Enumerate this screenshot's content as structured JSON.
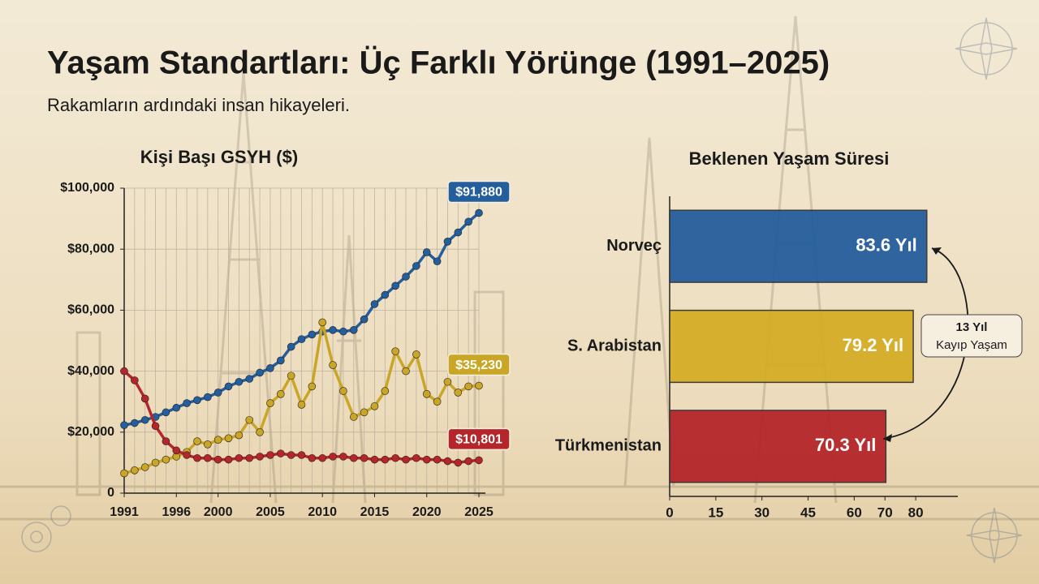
{
  "title": "Yaşam Standartları: Üç Farklı Yörünge (1991–2025)",
  "subtitle": "Rakamların ardındaki insan hikayeleri.",
  "chart_data": [
    {
      "type": "line",
      "title": "Kişi Başı GSYH ($)",
      "x": [
        1991,
        1992,
        1993,
        1994,
        1995,
        1996,
        1997,
        1998,
        1999,
        2000,
        2001,
        2002,
        2003,
        2004,
        2005,
        2006,
        2007,
        2008,
        2009,
        2010,
        2011,
        2012,
        2013,
        2014,
        2015,
        2016,
        2017,
        2018,
        2019,
        2020,
        2021,
        2022,
        2023,
        2024,
        2025
      ],
      "xlim": [
        1991,
        2025
      ],
      "xticks": [
        1991,
        1996,
        2000,
        2005,
        2010,
        2015,
        2020,
        2025
      ],
      "ylim": [
        0,
        100000
      ],
      "yticks": [
        0,
        {
          "value": 20000,
          "label": "$20,000"
        },
        {
          "value": 40000,
          "label": "$40,000"
        },
        {
          "value": 60000,
          "label": "$60,000"
        },
        {
          "value": 80000,
          "label": "$80,000"
        },
        {
          "value": 100000,
          "label": "$100,000"
        }
      ],
      "grid": true,
      "series": [
        {
          "color": "#255e9c",
          "values": [
            22300,
            23000,
            24000,
            25000,
            26500,
            28000,
            29500,
            30500,
            31500,
            33000,
            35000,
            36500,
            37500,
            39500,
            41000,
            43500,
            48000,
            50500,
            52000,
            53000,
            53500,
            53000,
            53500,
            57000,
            62000,
            65000,
            68000,
            71000,
            74500,
            79000,
            76000,
            82500,
            85500,
            89000,
            91880
          ],
          "value_labels": [
            null,
            null,
            null,
            null,
            null,
            null,
            null,
            null,
            null,
            null,
            null,
            null,
            null,
            null,
            null,
            null,
            null,
            null,
            null,
            null,
            null,
            null,
            null,
            null,
            null,
            null,
            null,
            null,
            null,
            null,
            null,
            null,
            null,
            null,
            "$91,880"
          ]
        },
        {
          "color": "#c9a625",
          "values": [
            6500,
            7500,
            8500,
            10000,
            11000,
            12000,
            13500,
            17000,
            16000,
            17500,
            18000,
            19000,
            24000,
            20000,
            29500,
            32500,
            38500,
            29000,
            35000,
            56000,
            42000,
            33500,
            25000,
            26500,
            28500,
            33500,
            46500,
            40000,
            45500,
            32500,
            30000,
            36500,
            33000,
            35000,
            35230
          ],
          "value_labels": [
            null,
            null,
            null,
            null,
            null,
            null,
            null,
            null,
            null,
            null,
            null,
            null,
            null,
            null,
            null,
            null,
            null,
            null,
            null,
            null,
            null,
            null,
            null,
            null,
            null,
            null,
            null,
            null,
            null,
            null,
            null,
            null,
            null,
            null,
            "$35,230"
          ]
        },
        {
          "color": "#b5262a",
          "values": [
            40000,
            37000,
            31000,
            22000,
            17000,
            14000,
            12500,
            11500,
            11500,
            11000,
            11000,
            11500,
            11500,
            12000,
            12500,
            13000,
            12500,
            12500,
            11500,
            11500,
            12000,
            12000,
            11500,
            11500,
            11000,
            11000,
            11500,
            11000,
            11500,
            11000,
            11000,
            10500,
            10000,
            10500,
            10801
          ],
          "value_labels": [
            null,
            null,
            null,
            null,
            null,
            null,
            null,
            null,
            null,
            null,
            null,
            null,
            null,
            null,
            null,
            null,
            null,
            null,
            null,
            null,
            null,
            null,
            null,
            null,
            null,
            null,
            null,
            null,
            null,
            null,
            null,
            null,
            null,
            null,
            "$10,801"
          ]
        }
      ]
    },
    {
      "type": "bar",
      "orientation": "horizontal",
      "title": "Beklenen Yaşam Süresi",
      "categories": [
        "Norveç",
        "S. Arabistan",
        "Türkmenistan"
      ],
      "values": [
        83.6,
        79.2,
        70.3
      ],
      "value_labels": [
        "83.6 Yıl",
        "79.2 Yıl",
        "70.3 Yıl"
      ],
      "colors": [
        "#255e9c",
        "#d4ad26",
        "#b5262a"
      ],
      "xlim": [
        0,
        90
      ],
      "xticks": [
        0,
        15,
        30,
        45,
        60,
        70,
        80
      ],
      "annotation": {
        "title": "13 Yıl",
        "text": "Kayıp Yaşam"
      }
    }
  ]
}
